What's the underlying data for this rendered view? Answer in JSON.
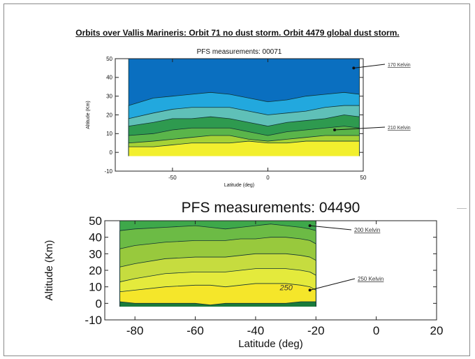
{
  "title": "Orbits over Vallis Marineris: Orbit 71 no dust storm. Orbit 4479 global dust storm.",
  "chart_data": [
    {
      "type": "contour",
      "title": "PFS measurements: 00071",
      "xlabel": "Latitude (deg)",
      "ylabel": "Altitude (Km)",
      "xlim": [
        -80,
        50
      ],
      "ylim": [
        -10,
        50
      ],
      "x_ticks": [
        "-50",
        "0",
        "50"
      ],
      "y_ticks": [
        "-10",
        "0",
        "10",
        "20",
        "30",
        "40",
        "50"
      ],
      "data_x_range": [
        -73,
        48
      ],
      "x": [
        -73,
        -60,
        -50,
        -40,
        -30,
        -20,
        -10,
        0,
        10,
        20,
        30,
        40,
        48
      ],
      "contour_levels": [
        {
          "label": "layer-1",
          "color": "#f2ef2e",
          "top": [
            3,
            3,
            4,
            5,
            5,
            5,
            6,
            5,
            5,
            6,
            6,
            6,
            6
          ]
        },
        {
          "label": "layer-2",
          "color": "#a6d236",
          "top": [
            5,
            6,
            7,
            8,
            9,
            9,
            7,
            6,
            7,
            8,
            9,
            9,
            9
          ]
        },
        {
          "label": "layer-3",
          "color": "#5ab54a",
          "top": [
            9,
            10,
            12,
            13,
            13,
            13,
            11,
            9,
            11,
            12,
            13,
            14,
            13
          ]
        },
        {
          "label": "layer-4",
          "color": "#2e9a4f",
          "top": [
            14,
            16,
            18,
            18,
            19,
            18,
            16,
            14,
            16,
            17,
            18,
            20,
            19
          ]
        },
        {
          "label": "layer-5",
          "color": "#5fc0b8",
          "top": [
            18,
            21,
            23,
            24,
            24,
            24,
            22,
            20,
            21,
            22,
            24,
            25,
            25
          ]
        },
        {
          "label": "layer-6",
          "color": "#22a8de",
          "top": [
            25,
            29,
            30,
            31,
            32,
            31,
            29,
            27,
            28,
            30,
            31,
            32,
            31
          ]
        },
        {
          "label": "layer-7",
          "color": "#0a6fc0",
          "top": [
            50,
            50,
            50,
            50,
            50,
            50,
            50,
            50,
            50,
            50,
            50,
            50,
            50
          ]
        }
      ],
      "annotations": [
        {
          "text": "170 Kelvin",
          "x": 45,
          "y": 45
        },
        {
          "text": "210 Kelvin",
          "x": 35,
          "y": 12
        }
      ]
    },
    {
      "type": "contour",
      "title": "PFS measurements: 04490",
      "xlabel": "Latitude (deg)",
      "ylabel": "Altitude (Km)",
      "xlim": [
        -90,
        20
      ],
      "ylim": [
        -10,
        50
      ],
      "x_ticks": [
        "-80",
        "-60",
        "-40",
        "-20",
        "0",
        "20"
      ],
      "y_ticks": [
        "-10",
        "0",
        "10",
        "20",
        "30",
        "40",
        "50"
      ],
      "data_x_range": [
        -85,
        -20
      ],
      "x": [
        -85,
        -80,
        -70,
        -60,
        -55,
        -50,
        -45,
        -40,
        -35,
        -30,
        -25,
        -22,
        -20
      ],
      "contour_levels": [
        {
          "label": "layer-1",
          "color": "#1a7b3b",
          "top": [
            1,
            0,
            0,
            0,
            -1,
            0,
            0,
            0,
            0,
            0,
            1,
            1,
            1
          ]
        },
        {
          "label": "layer-2",
          "color": "#f5e62a",
          "top": [
            7,
            8,
            10,
            11,
            11,
            10,
            11,
            12,
            12,
            12,
            11,
            10,
            8
          ]
        },
        {
          "label": "layer-3",
          "color": "#e4ea3c",
          "top": [
            13,
            15,
            18,
            19,
            19,
            19,
            20,
            21,
            21,
            21,
            20,
            19,
            17
          ]
        },
        {
          "label": "layer-4",
          "color": "#c6dc3f",
          "top": [
            22,
            24,
            27,
            28,
            28,
            28,
            29,
            30,
            30,
            30,
            29,
            28,
            26
          ]
        },
        {
          "label": "layer-5",
          "color": "#98c93d",
          "top": [
            33,
            35,
            37,
            38,
            38,
            38,
            39,
            39,
            40,
            40,
            39,
            38,
            36
          ]
        },
        {
          "label": "layer-6",
          "color": "#6cbb45",
          "top": [
            44,
            45,
            46,
            47,
            46,
            45,
            46,
            47,
            48,
            47,
            46,
            45,
            44
          ]
        },
        {
          "label": "layer-7",
          "color": "#3ea84a",
          "top": [
            50,
            50,
            50,
            50,
            50,
            50,
            50,
            50,
            50,
            50,
            50,
            50,
            50
          ]
        }
      ],
      "inline_labels": [
        {
          "text": "250",
          "x": -32,
          "y": 8
        }
      ],
      "annotations": [
        {
          "text": "200 Kelvin",
          "x": -22,
          "y": 47
        },
        {
          "text": "250 Kelvin",
          "x": -22,
          "y": 8
        }
      ]
    }
  ]
}
